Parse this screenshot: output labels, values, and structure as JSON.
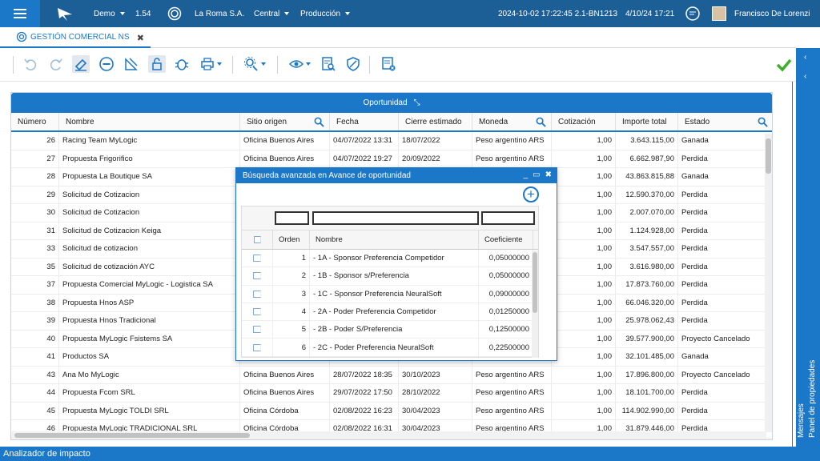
{
  "topbar": {
    "environment": "Demo",
    "version": "1.54",
    "company": "La Roma S.A.",
    "branch": "Central",
    "mode": "Producción",
    "build": "2024-10-02 17:22:45 2.1-BN1213",
    "date": "4/10/24 17:21",
    "user": "Francisco De Lorenzi"
  },
  "tab": {
    "label": "GESTIÓN COMERCIAL NS",
    "close": "✖"
  },
  "grid": {
    "title": "Oportunidad",
    "columns": [
      "Número",
      "Nombre",
      "Sitio origen",
      "Fecha",
      "Cierre estimado",
      "Moneda",
      "Cotización",
      "Importe total",
      "Estado"
    ],
    "rows": [
      [
        "26",
        "Racing Team MyLogic",
        "Oficina Buenos Aires",
        "04/07/2022 13:31",
        "18/07/2022",
        "Peso argentino ARS",
        "1,00",
        "3.643.115,00",
        "Ganada"
      ],
      [
        "27",
        "Propuesta Frigorifico",
        "Oficina Buenos Aires",
        "04/07/2022 19:27",
        "20/09/2022",
        "Peso argentino ARS",
        "1,00",
        "6.662.987,90",
        "Perdida"
      ],
      [
        "28",
        "Propuesta La Boutique SA",
        "",
        "",
        "",
        "",
        "1,00",
        "43.863.815,88",
        "Ganada"
      ],
      [
        "29",
        "Solicitud de Cotizacion",
        "",
        "",
        "",
        "",
        "1,00",
        "12.590.370,00",
        "Perdida"
      ],
      [
        "30",
        "Solicitud de Cotizacion",
        "",
        "",
        "",
        "",
        "1,00",
        "2.007.070,00",
        "Perdida"
      ],
      [
        "31",
        "Solicitud de Cotizacion Keiga",
        "",
        "",
        "",
        "",
        "1,00",
        "1.124.928,00",
        "Perdida"
      ],
      [
        "33",
        "Solicitud de cotizacion",
        "",
        "",
        "",
        "",
        "1,00",
        "3.547.557,00",
        "Perdida"
      ],
      [
        "35",
        "Solicitud de cotización AYC",
        "",
        "",
        "",
        "",
        "1,00",
        "3.616.980,00",
        "Perdida"
      ],
      [
        "37",
        "Propuesta Comercial MyLogic - Logistica SA",
        "",
        "",
        "",
        "",
        "1,00",
        "17.873.760,00",
        "Perdida"
      ],
      [
        "38",
        "Propuesta Hnos ASP",
        "",
        "",
        "",
        "",
        "1,00",
        "66.046.320,00",
        "Perdida"
      ],
      [
        "39",
        "Propuesta Hnos Tradicional",
        "",
        "",
        "",
        "",
        "1,00",
        "25.978.062,43",
        "Perdida"
      ],
      [
        "40",
        "Propuesta MyLogic Fsistems SA",
        "",
        "",
        "",
        "",
        "1,00",
        "39.577.900,00",
        "Proyecto Cancelado"
      ],
      [
        "41",
        "Productos SA",
        "",
        "",
        "",
        "",
        "1,00",
        "32.101.485,00",
        "Ganada"
      ],
      [
        "43",
        "Ana Mo MyLogic",
        "Oficina Buenos Aires",
        "28/07/2022 18:35",
        "30/10/2023",
        "Peso argentino ARS",
        "1,00",
        "17.896.800,00",
        "Proyecto Cancelado"
      ],
      [
        "44",
        "Propuesta Fcom SRL",
        "Oficina Buenos Aires",
        "29/07/2022 17:50",
        "28/10/2022",
        "Peso argentino ARS",
        "1,00",
        "18.101.700,00",
        "Perdida"
      ],
      [
        "45",
        "Propuesta MyLogic  TOLDI SRL",
        "Oficina Córdoba",
        "02/08/2022 16:23",
        "30/04/2023",
        "Peso argentino ARS",
        "1,00",
        "114.902.990,00",
        "Perdida"
      ],
      [
        "46",
        "Propuesta MyLogic TRADICIONAL SRL",
        "Oficina Córdoba",
        "02/08/2022 16:31",
        "30/04/2023",
        "Peso argentino ARS",
        "1,00",
        "31.879.446,00",
        "Perdida"
      ]
    ]
  },
  "dialog": {
    "title": "Búsqueda avanzada en Avance de oportunidad",
    "controls": [
      "_",
      "▭",
      "✖"
    ],
    "columns": [
      "Orden",
      "Nombre",
      "Coeficiente"
    ],
    "rows": [
      [
        "1",
        "- 1A - Sponsor Preferencia Competidor",
        "0,05000000"
      ],
      [
        "2",
        "- 1B - Sponsor s/Preferencia",
        "0,05000000"
      ],
      [
        "3",
        "- 1C - Sponsor Preferencia NeuralSoft",
        "0,09000000"
      ],
      [
        "4",
        "- 2A - Poder Preferencia Competidor",
        "0,01250000"
      ],
      [
        "5",
        "- 2B - Poder S/Preferencia",
        "0,12500000"
      ],
      [
        "6",
        "- 2C - Poder Preferencia NeuralSoft",
        "0,22500000"
      ]
    ]
  },
  "right_panel": {
    "properties": "Panel de propiedades",
    "messages": "Mensajes"
  },
  "bottombar": {
    "label": "Analizador de impacto"
  },
  "colors": {
    "primary": "#1b77c7",
    "topbar": "#1c5f96",
    "success": "#3fae2a"
  }
}
